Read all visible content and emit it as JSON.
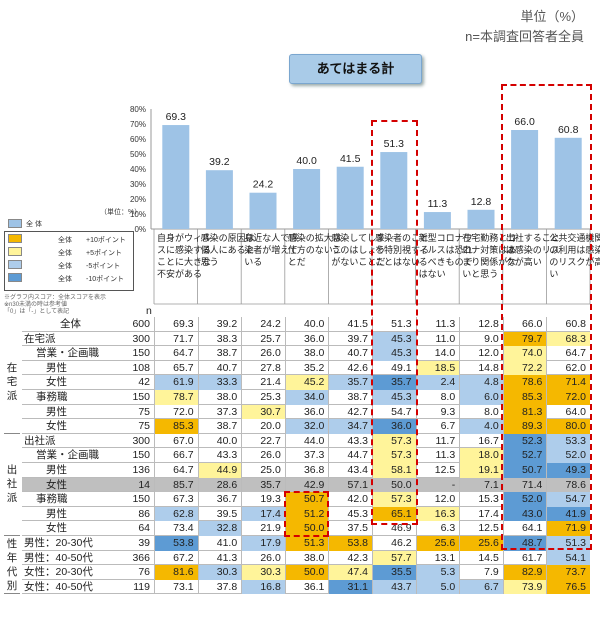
{
  "header": {
    "unit": "単位（%）",
    "base": "n=本調査回答者全員",
    "title": "あてはまる計"
  },
  "chart_data": {
    "type": "bar",
    "categories": [
      "自身がウィルスに感染することに大きな不安がある",
      "感染の原因は個人にあると思う",
      "身近な人で感染者が増えている",
      "感染の拡大は仕方のないことだ",
      "感染してしまうのはしょうがないことだ",
      "感染者のことを特別視することはない",
      "新型コロナウィルスは恐れるべきものではない",
      "在宅勤務とコロナ対策はあまり関係がないと思う",
      "出社することは感染のリスクが高い",
      "公共交通機関の利用は感染のリスクが高い"
    ],
    "values": [
      69.3,
      39.2,
      24.2,
      40.0,
      41.5,
      51.3,
      11.3,
      12.8,
      66.0,
      60.8
    ],
    "y_ticks": [
      "0%",
      "10%",
      "20%",
      "30%",
      "40%",
      "50%",
      "60%",
      "70%",
      "80%"
    ],
    "ylim": [
      0,
      80
    ],
    "ylabel": "（単位：%）",
    "series_label": "全 体",
    "bar_color": "#9ec3e6"
  },
  "legend": {
    "items": [
      {
        "label": "全体　　+10ポイント",
        "color": "#f5b800"
      },
      {
        "label": "全体　　+5ポイント",
        "color": "#fff49a"
      },
      {
        "label": "全体　　-5ポイント",
        "color": "#aecdeb"
      },
      {
        "label": "全体　　-10ポイント",
        "color": "#5d9bd4"
      }
    ],
    "notes": [
      "※グラフ内スコア：全体スコアを表示",
      "※n30未満の時は参考値",
      "「0」は「-」として表記"
    ]
  },
  "table": {
    "n_header": "n",
    "group_labels": [
      {
        "text": "在\n宅\n派"
      },
      {
        "text": "出\n社\n派"
      },
      {
        "text": "性\n年\n代\n別"
      }
    ],
    "rows": [
      {
        "label": "全体",
        "n": "600",
        "values": [
          "69.3",
          "39.2",
          "24.2",
          "40.0",
          "41.5",
          "51.3",
          "11.3",
          "12.8",
          "66.0",
          "60.8"
        ],
        "hl": [
          "",
          "",
          "",
          "",
          "",
          "",
          "",
          "",
          "",
          ""
        ]
      },
      {
        "label": "在宅派",
        "n": "300",
        "values": [
          "71.7",
          "38.3",
          "25.7",
          "36.0",
          "39.7",
          "45.3",
          "11.0",
          "9.0",
          "79.7",
          "68.3"
        ],
        "hl": [
          "",
          "",
          "",
          "",
          "",
          "dn5",
          "",
          "",
          "up10",
          "up5"
        ]
      },
      {
        "label": "営業・企画職",
        "n": "150",
        "values": [
          "64.7",
          "38.7",
          "26.0",
          "38.0",
          "40.7",
          "45.3",
          "14.0",
          "12.0",
          "74.0",
          "64.7"
        ],
        "hl": [
          "",
          "",
          "",
          "",
          "",
          "dn5",
          "",
          "",
          "up5",
          ""
        ]
      },
      {
        "label": "男性",
        "n": "108",
        "values": [
          "65.7",
          "40.7",
          "27.8",
          "35.2",
          "42.6",
          "49.1",
          "18.5",
          "14.8",
          "72.2",
          "62.0"
        ],
        "hl": [
          "",
          "",
          "",
          "",
          "",
          "",
          "up5",
          "",
          "up5",
          ""
        ]
      },
      {
        "label": "女性",
        "n": "42",
        "values": [
          "61.9",
          "33.3",
          "21.4",
          "45.2",
          "35.7",
          "35.7",
          "2.4",
          "4.8",
          "78.6",
          "71.4"
        ],
        "hl": [
          "dn5",
          "dn5",
          "",
          "up5",
          "dn5",
          "dn10",
          "dn5",
          "dn5",
          "up10",
          "up10"
        ]
      },
      {
        "label": "事務職",
        "n": "150",
        "values": [
          "78.7",
          "38.0",
          "25.3",
          "34.0",
          "38.7",
          "45.3",
          "8.0",
          "6.0",
          "85.3",
          "72.0"
        ],
        "hl": [
          "up5",
          "",
          "",
          "dn5",
          "",
          "dn5",
          "",
          "dn5",
          "up10",
          "up10"
        ]
      },
      {
        "label": "男性",
        "n": "75",
        "values": [
          "72.0",
          "37.3",
          "30.7",
          "36.0",
          "42.7",
          "54.7",
          "9.3",
          "8.0",
          "81.3",
          "64.0"
        ],
        "hl": [
          "",
          "",
          "up5",
          "",
          "",
          "",
          "",
          "",
          "up10",
          ""
        ]
      },
      {
        "label": "女性",
        "n": "75",
        "values": [
          "85.3",
          "38.7",
          "20.0",
          "32.0",
          "34.7",
          "36.0",
          "6.7",
          "4.0",
          "89.3",
          "80.0"
        ],
        "hl": [
          "up10",
          "",
          "",
          "dn5",
          "dn5",
          "dn10",
          "",
          "dn5",
          "up10",
          "up10"
        ]
      },
      {
        "label": "出社派",
        "n": "300",
        "values": [
          "67.0",
          "40.0",
          "22.7",
          "44.0",
          "43.3",
          "57.3",
          "11.7",
          "16.7",
          "52.3",
          "53.3"
        ],
        "hl": [
          "",
          "",
          "",
          "",
          "",
          "up5",
          "",
          "",
          "dn10",
          "dn5"
        ]
      },
      {
        "label": "営業・企画職",
        "n": "150",
        "values": [
          "66.7",
          "43.3",
          "26.0",
          "37.3",
          "44.7",
          "57.3",
          "11.3",
          "18.0",
          "52.7",
          "52.0"
        ],
        "hl": [
          "",
          "",
          "",
          "",
          "",
          "up5",
          "",
          "up5",
          "dn10",
          "dn5"
        ]
      },
      {
        "label": "男性",
        "n": "136",
        "values": [
          "64.7",
          "44.9",
          "25.0",
          "36.8",
          "43.4",
          "58.1",
          "12.5",
          "19.1",
          "50.7",
          "49.3"
        ],
        "hl": [
          "",
          "up5",
          "",
          "",
          "",
          "up5",
          "",
          "up5",
          "dn10",
          "dn10"
        ]
      },
      {
        "label": "女性",
        "n": "14",
        "values": [
          "85.7",
          "28.6",
          "35.7",
          "42.9",
          "57.1",
          "50.0",
          "-",
          "7.1",
          "71.4",
          "78.6"
        ],
        "hl": [
          "g",
          "g",
          "g",
          "g",
          "g",
          "g",
          "g",
          "g",
          "g",
          "g"
        ]
      },
      {
        "label": "事務職",
        "n": "150",
        "values": [
          "67.3",
          "36.7",
          "19.3",
          "50.7",
          "42.0",
          "57.3",
          "12.0",
          "15.3",
          "52.0",
          "54.7"
        ],
        "hl": [
          "",
          "",
          "",
          "up10",
          "",
          "up5",
          "",
          "",
          "dn10",
          "dn5"
        ]
      },
      {
        "label": "男性",
        "n": "86",
        "values": [
          "62.8",
          "39.5",
          "17.4",
          "51.2",
          "45.3",
          "65.1",
          "16.3",
          "17.4",
          "43.0",
          "41.9"
        ],
        "hl": [
          "dn5",
          "",
          "dn5",
          "up10",
          "",
          "up10",
          "up5",
          "",
          "dn10",
          "dn10"
        ]
      },
      {
        "label": "女性",
        "n": "64",
        "values": [
          "73.4",
          "32.8",
          "21.9",
          "50.0",
          "37.5",
          "46.9",
          "6.3",
          "12.5",
          "64.1",
          "71.9"
        ],
        "hl": [
          "",
          "dn5",
          "",
          "up10",
          "",
          "",
          "",
          "",
          "",
          "up10"
        ]
      },
      {
        "label": "男性：20-30代",
        "n": "39",
        "values": [
          "53.8",
          "41.0",
          "17.9",
          "51.3",
          "53.8",
          "46.2",
          "25.6",
          "25.6",
          "48.7",
          "51.3"
        ],
        "hl": [
          "dn10",
          "",
          "dn5",
          "up10",
          "up10",
          "",
          "up10",
          "up10",
          "dn10",
          "dn5"
        ]
      },
      {
        "label": "男性：40-50代",
        "n": "366",
        "values": [
          "67.2",
          "41.3",
          "26.0",
          "38.0",
          "42.3",
          "57.7",
          "13.1",
          "14.5",
          "61.7",
          "54.1"
        ],
        "hl": [
          "",
          "",
          "",
          "",
          "",
          "up5",
          "",
          "",
          "",
          "dn5"
        ]
      },
      {
        "label": "女性：20-30代",
        "n": "76",
        "values": [
          "81.6",
          "30.3",
          "30.3",
          "50.0",
          "47.4",
          "35.5",
          "5.3",
          "7.9",
          "82.9",
          "73.7"
        ],
        "hl": [
          "up10",
          "dn5",
          "up5",
          "up10",
          "up5",
          "dn10",
          "dn5",
          "",
          "up10",
          "up10"
        ]
      },
      {
        "label": "女性：40-50代",
        "n": "119",
        "values": [
          "73.1",
          "37.8",
          "16.8",
          "36.1",
          "31.1",
          "43.7",
          "5.0",
          "6.7",
          "73.9",
          "76.5"
        ],
        "hl": [
          "",
          "",
          "dn5",
          "",
          "dn10",
          "dn5",
          "dn5",
          "dn5",
          "up5",
          "up10"
        ]
      }
    ]
  }
}
